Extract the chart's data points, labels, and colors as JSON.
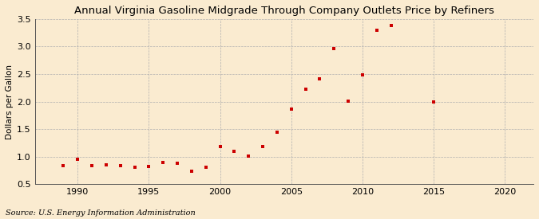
{
  "title": "Annual Virginia Gasoline Midgrade Through Company Outlets Price by Refiners",
  "ylabel": "Dollars per Gallon",
  "source": "Source: U.S. Energy Information Administration",
  "years": [
    1989,
    1990,
    1991,
    1992,
    1993,
    1994,
    1995,
    1996,
    1997,
    1998,
    1999,
    2000,
    2001,
    2002,
    2003,
    2004,
    2005,
    2006,
    2007,
    2008,
    2009,
    2010,
    2011,
    2012,
    2015
  ],
  "values": [
    0.83,
    0.95,
    0.83,
    0.85,
    0.83,
    0.8,
    0.82,
    0.9,
    0.88,
    0.73,
    0.8,
    1.18,
    1.1,
    1.01,
    1.19,
    1.44,
    1.87,
    2.22,
    2.41,
    2.96,
    2.01,
    2.49,
    3.29,
    3.38,
    1.99
  ],
  "xlim": [
    1987,
    2022
  ],
  "ylim": [
    0.5,
    3.5
  ],
  "xticks": [
    1990,
    1995,
    2000,
    2005,
    2010,
    2015,
    2020
  ],
  "yticks": [
    0.5,
    1.0,
    1.5,
    2.0,
    2.5,
    3.0,
    3.5
  ],
  "marker_color": "#cc0000",
  "marker_size": 3.5,
  "bg_color": "#faebd0",
  "grid_color": "#b0b0b0",
  "title_fontsize": 9.5,
  "label_fontsize": 7.5,
  "tick_fontsize": 8,
  "source_fontsize": 7
}
